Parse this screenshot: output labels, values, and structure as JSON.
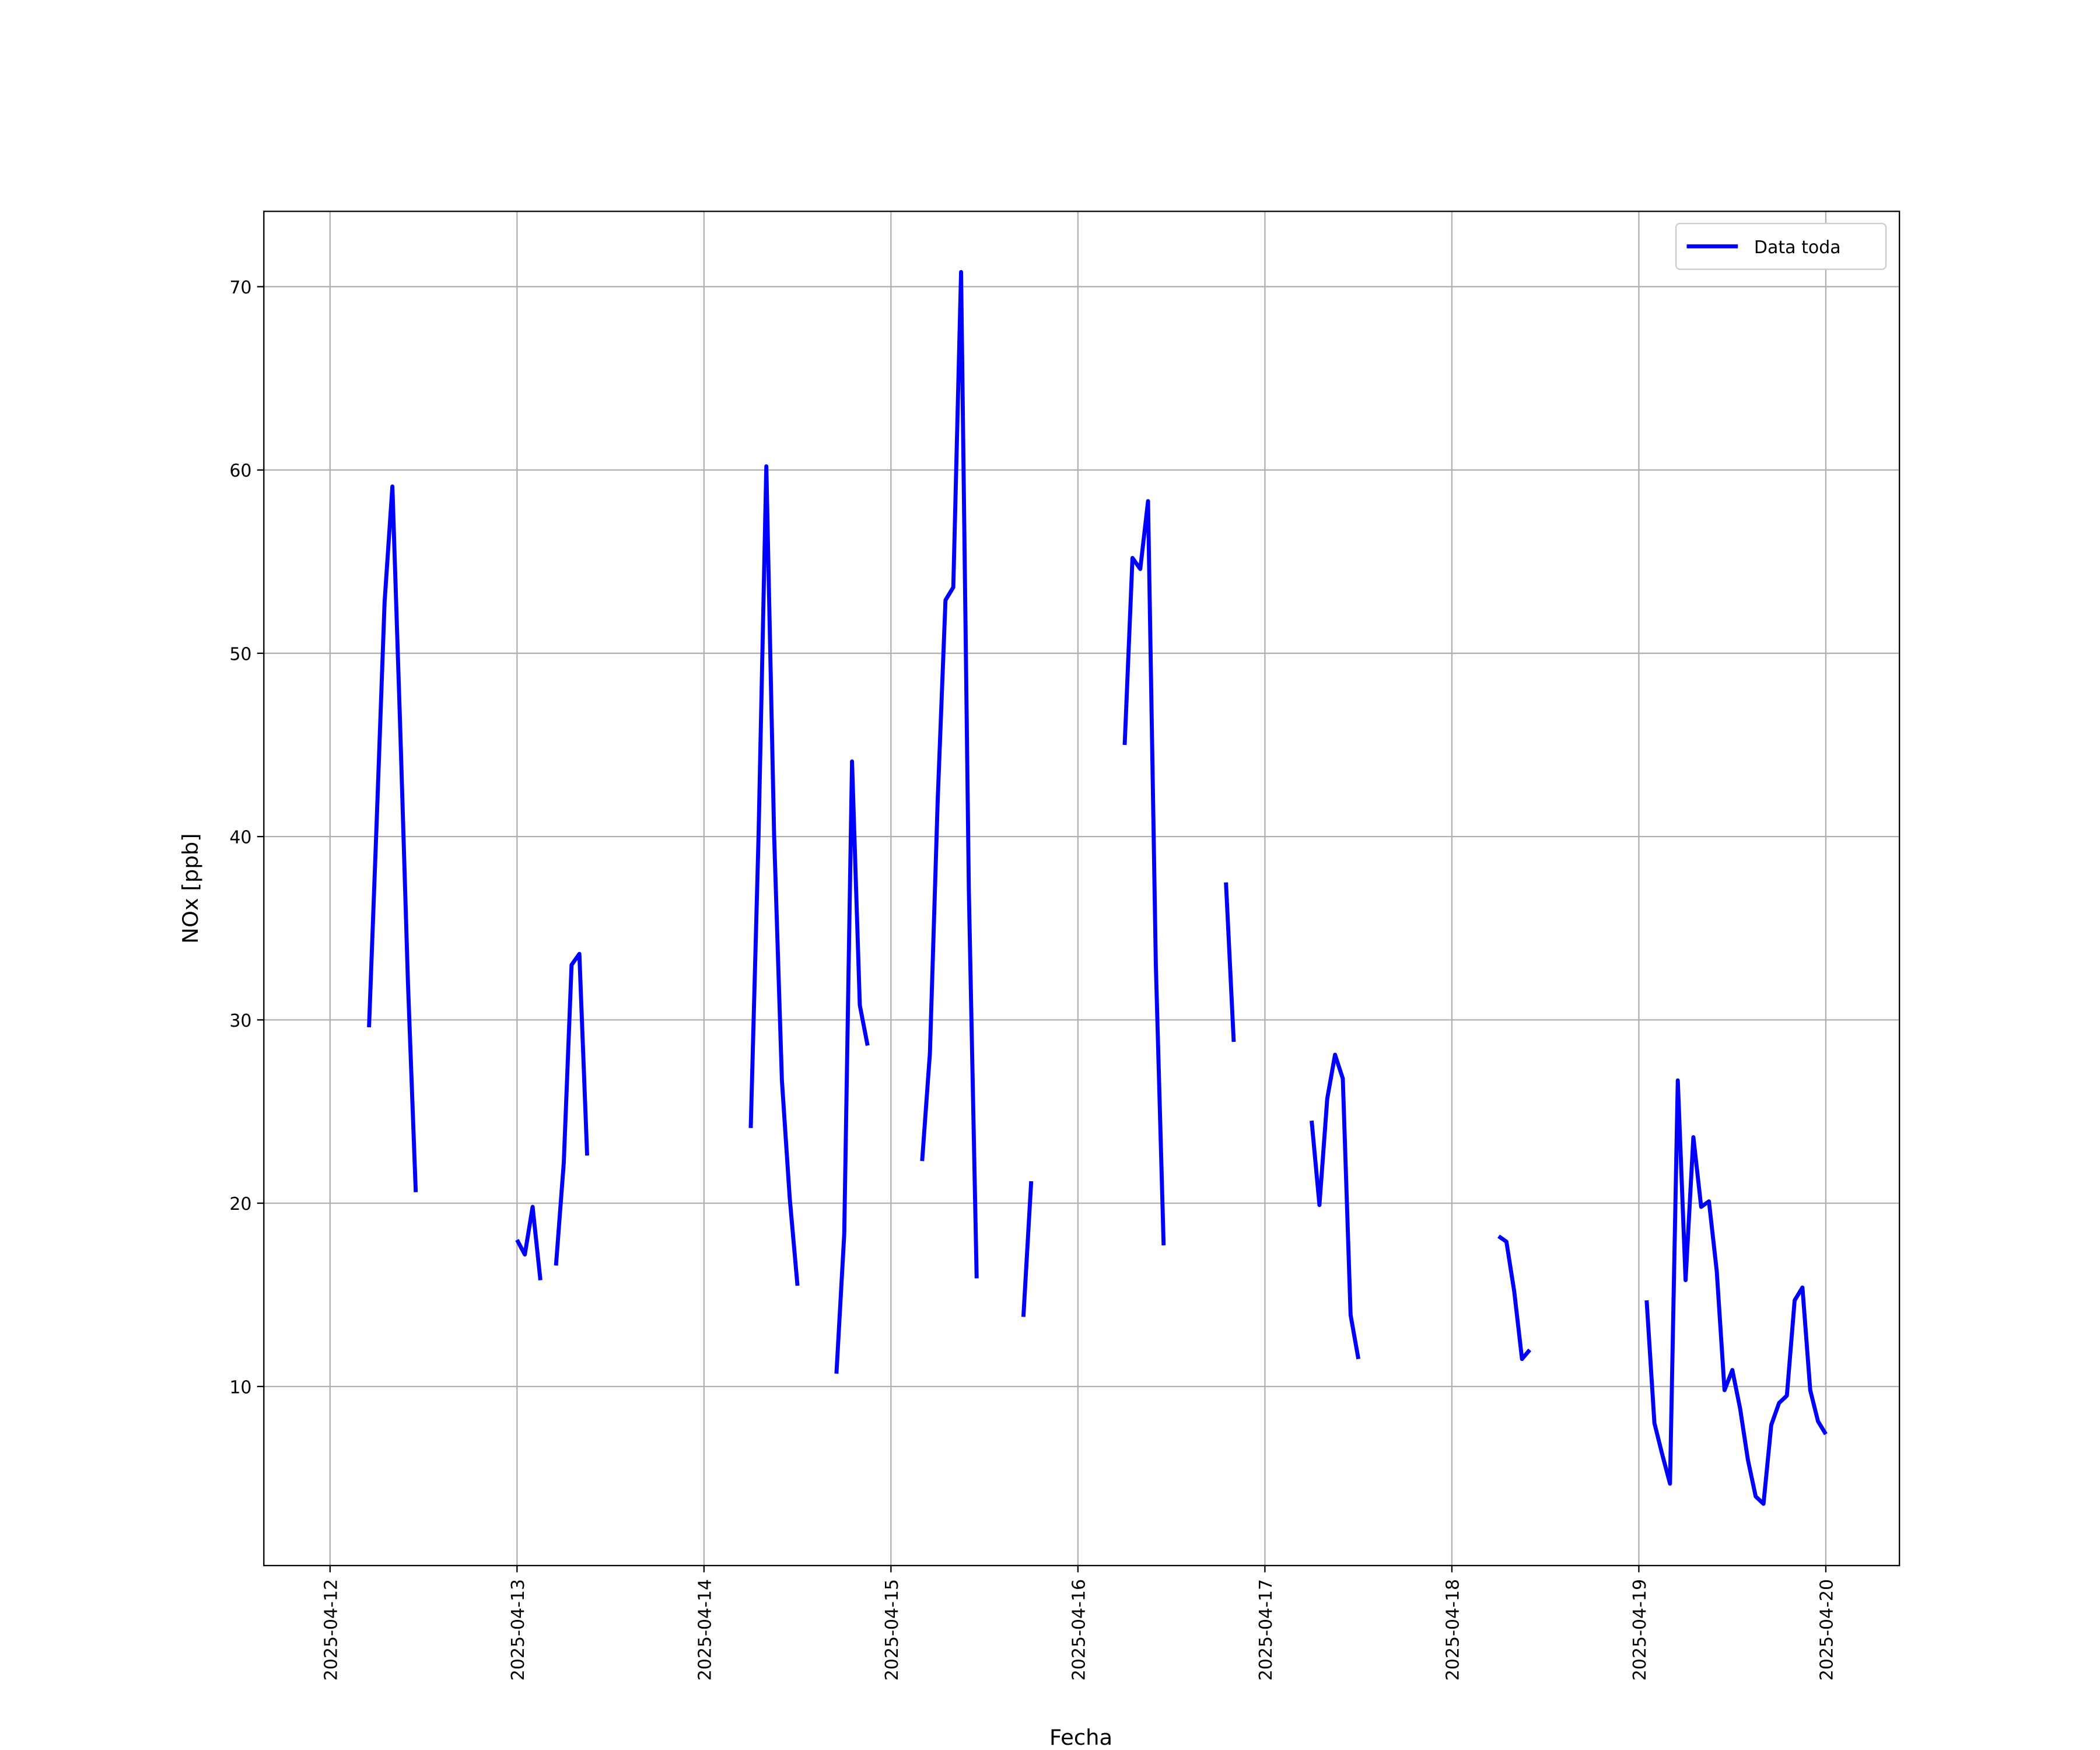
{
  "chart_data": {
    "type": "line",
    "xlabel": "Fecha",
    "ylabel": "NOx [ppb]",
    "x": [
      "2025-04-12T05:00",
      "2025-04-12T06:00",
      "2025-04-12T07:00",
      "2025-04-12T08:00",
      "2025-04-12T09:00",
      "2025-04-12T10:00",
      "2025-04-12T11:00",
      "2025-04-12T12:00",
      "2025-04-13T00:00",
      "2025-04-13T01:00",
      "2025-04-13T02:00",
      "2025-04-13T03:00",
      "2025-04-13T04:00",
      "2025-04-13T05:00",
      "2025-04-13T06:00",
      "2025-04-13T07:00",
      "2025-04-13T08:00",
      "2025-04-13T09:00",
      "2025-04-13T10:00",
      "2025-04-14T06:00",
      "2025-04-14T07:00",
      "2025-04-14T08:00",
      "2025-04-14T09:00",
      "2025-04-14T10:00",
      "2025-04-14T11:00",
      "2025-04-14T12:00",
      "2025-04-14T13:00",
      "2025-04-14T17:00",
      "2025-04-14T18:00",
      "2025-04-14T19:00",
      "2025-04-14T20:00",
      "2025-04-14T21:00",
      "2025-04-14T22:00",
      "2025-04-15T04:00",
      "2025-04-15T05:00",
      "2025-04-15T06:00",
      "2025-04-15T07:00",
      "2025-04-15T08:00",
      "2025-04-15T09:00",
      "2025-04-15T10:00",
      "2025-04-15T11:00",
      "2025-04-15T12:00",
      "2025-04-15T17:00",
      "2025-04-15T18:00",
      "2025-04-15T19:00",
      "2025-04-16T06:00",
      "2025-04-16T07:00",
      "2025-04-16T08:00",
      "2025-04-16T09:00",
      "2025-04-16T10:00",
      "2025-04-16T11:00",
      "2025-04-16T12:00",
      "2025-04-16T19:00",
      "2025-04-16T20:00",
      "2025-04-16T21:00",
      "2025-04-17T06:00",
      "2025-04-17T07:00",
      "2025-04-17T08:00",
      "2025-04-17T09:00",
      "2025-04-17T10:00",
      "2025-04-17T11:00",
      "2025-04-17T12:00",
      "2025-04-17T13:00",
      "2025-04-18T06:00",
      "2025-04-18T07:00",
      "2025-04-18T08:00",
      "2025-04-18T09:00",
      "2025-04-18T10:00",
      "2025-04-18T11:00",
      "2025-04-19T01:00",
      "2025-04-19T02:00",
      "2025-04-19T03:00",
      "2025-04-19T04:00",
      "2025-04-19T05:00",
      "2025-04-19T06:00",
      "2025-04-19T07:00",
      "2025-04-19T08:00",
      "2025-04-19T09:00",
      "2025-04-19T10:00",
      "2025-04-19T11:00",
      "2025-04-19T12:00",
      "2025-04-19T13:00",
      "2025-04-19T14:00",
      "2025-04-19T15:00",
      "2025-04-19T16:00",
      "2025-04-19T17:00",
      "2025-04-19T18:00",
      "2025-04-19T19:00",
      "2025-04-19T20:00",
      "2025-04-19T21:00",
      "2025-04-19T22:00",
      "2025-04-19T23:00",
      "2025-04-20T00:00"
    ],
    "series": [
      {
        "name": "Data toda",
        "color": "#0000ff",
        "values": [
          29.6,
          41,
          52.8,
          59.1,
          46,
          32,
          20.6,
          null,
          18.0,
          17.2,
          19.8,
          15.8,
          null,
          16.6,
          22.2,
          33.0,
          33.6,
          22.6,
          null,
          24.1,
          40,
          60.2,
          40.1,
          26.7,
          20.3,
          15.5,
          null,
          10.7,
          18.3,
          44.1,
          30.8,
          28.6,
          null,
          22.3,
          28.2,
          42,
          52.9,
          53.6,
          70.8,
          37,
          15.9,
          null,
          13.8,
          21.2,
          null,
          45.0,
          55.2,
          54.6,
          58.3,
          33,
          17.7,
          null,
          37.5,
          28.8,
          null,
          24.5,
          19.9,
          25.7,
          28.1,
          26.8,
          13.9,
          11.5,
          null,
          18.2,
          17.9,
          15.2,
          11.5,
          12.0,
          null,
          14.7,
          8.0,
          6.3,
          4.7,
          26.7,
          15.8,
          23.6,
          19.8,
          20.1,
          16.3,
          9.8,
          10.9,
          8.8,
          6.0,
          4.0,
          3.6,
          7.9,
          9.1,
          9.5,
          14.7,
          15.4,
          9.8,
          8.1,
          7.4
        ]
      }
    ],
    "xlim": [
      "2025-04-11T15:30",
      "2025-04-20T09:27"
    ],
    "xticks": [
      "2025-04-12",
      "2025-04-13",
      "2025-04-14",
      "2025-04-15",
      "2025-04-16",
      "2025-04-17",
      "2025-04-18",
      "2025-04-19",
      "2025-04-20"
    ],
    "ylim": [
      0.23,
      74.11
    ],
    "yticks": [
      10,
      20,
      30,
      40,
      50,
      60,
      70
    ],
    "grid": true,
    "legend": "upper right"
  }
}
